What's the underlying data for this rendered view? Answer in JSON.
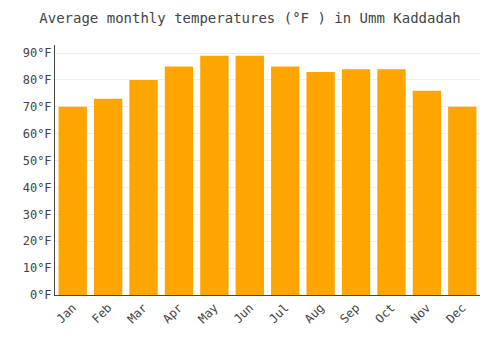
{
  "chart_data": {
    "type": "bar",
    "title": "Average monthly temperatures (°F ) in Umm Kaddadah",
    "categories": [
      "Jan",
      "Feb",
      "Mar",
      "Apr",
      "May",
      "Jun",
      "Jul",
      "Aug",
      "Sep",
      "Oct",
      "Nov",
      "Dec"
    ],
    "values": [
      70,
      73,
      80,
      85,
      89,
      89,
      85,
      83,
      84,
      84,
      76,
      70
    ],
    "color": "#FFA500",
    "ylim": [
      0,
      93
    ],
    "yticks": [
      {
        "value": 0,
        "label": "0°F"
      },
      {
        "value": 10,
        "label": "10°F"
      },
      {
        "value": 20,
        "label": "20°F"
      },
      {
        "value": 30,
        "label": "30°F"
      },
      {
        "value": 40,
        "label": "40°F"
      },
      {
        "value": 50,
        "label": "50°F"
      },
      {
        "value": 60,
        "label": "60°F"
      },
      {
        "value": 70,
        "label": "70°F"
      },
      {
        "value": 80,
        "label": "80°F"
      },
      {
        "value": 90,
        "label": "90°F"
      }
    ],
    "grid": true
  }
}
